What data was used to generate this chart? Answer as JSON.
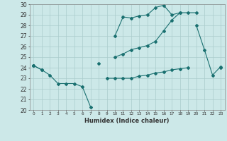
{
  "x": [
    0,
    1,
    2,
    3,
    4,
    5,
    6,
    7,
    8,
    9,
    10,
    11,
    12,
    13,
    14,
    15,
    16,
    17,
    18,
    19,
    20,
    21,
    22,
    23
  ],
  "line1": [
    24.2,
    23.8,
    23.3,
    22.5,
    22.5,
    22.5,
    22.2,
    20.3,
    null,
    23.0,
    23.0,
    23.0,
    23.0,
    23.2,
    23.3,
    23.5,
    23.6,
    23.8,
    23.9,
    24.0,
    null,
    null,
    null,
    24.0
  ],
  "line2": [
    24.2,
    null,
    null,
    null,
    null,
    null,
    null,
    null,
    24.4,
    null,
    27.0,
    28.8,
    28.7,
    28.9,
    29.0,
    29.7,
    29.9,
    29.0,
    29.2,
    null,
    28.0,
    25.7,
    23.3,
    24.1
  ],
  "line3": [
    24.2,
    23.8,
    null,
    null,
    null,
    null,
    null,
    null,
    null,
    null,
    25.0,
    25.3,
    25.7,
    25.9,
    26.1,
    26.5,
    27.5,
    28.5,
    29.2,
    29.2,
    29.2,
    null,
    null,
    null
  ],
  "bg_color": "#cce8e8",
  "grid_color": "#aacccc",
  "line_color": "#1a7070",
  "xlabel": "Humidex (Indice chaleur)",
  "ylim": [
    20,
    30
  ],
  "xlim": [
    -0.5,
    23.5
  ],
  "yticks": [
    20,
    21,
    22,
    23,
    24,
    25,
    26,
    27,
    28,
    29,
    30
  ],
  "xticks": [
    0,
    1,
    2,
    3,
    4,
    5,
    6,
    7,
    8,
    9,
    10,
    11,
    12,
    13,
    14,
    15,
    16,
    17,
    18,
    19,
    20,
    21,
    22,
    23
  ]
}
